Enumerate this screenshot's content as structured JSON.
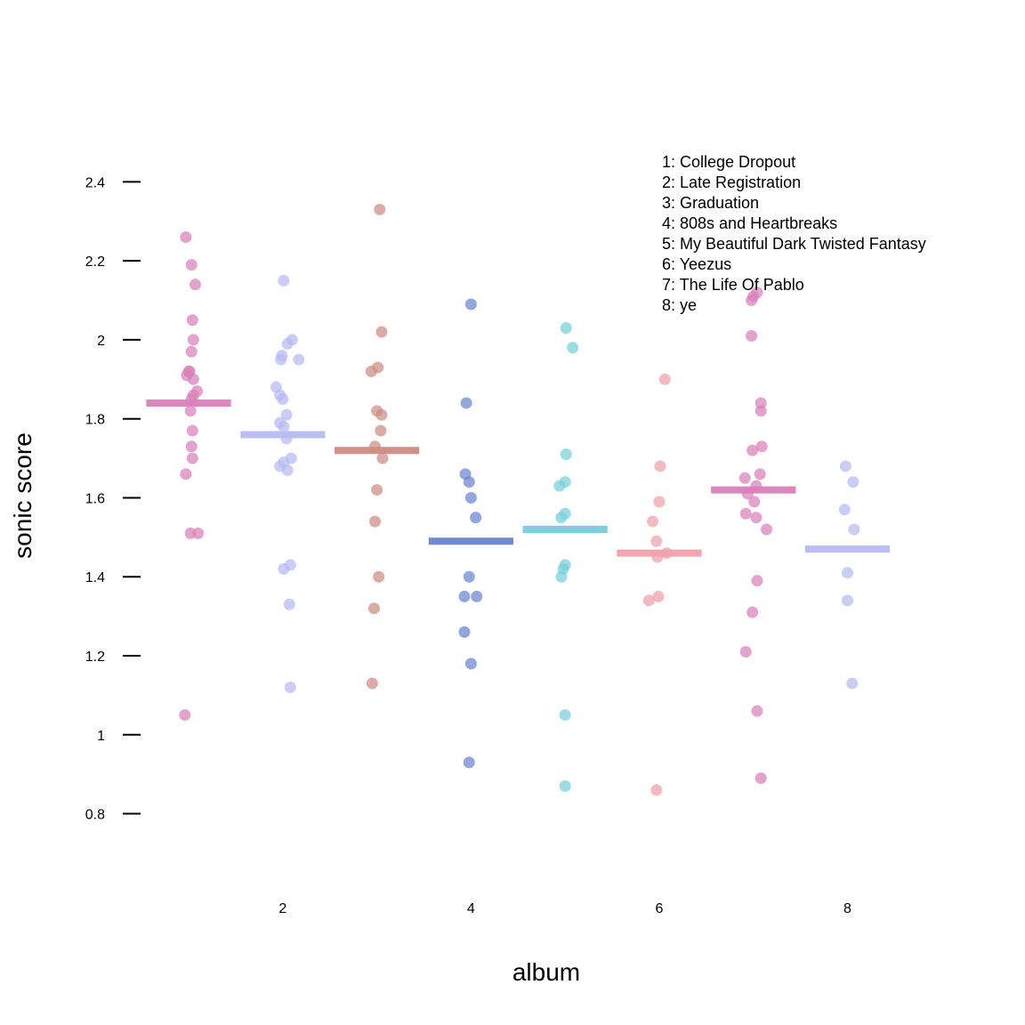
{
  "chart_data": {
    "type": "scatter",
    "xlabel": "album",
    "ylabel": "sonic score",
    "xlim": [
      0.3,
      9.3
    ],
    "ylim": [
      0.63,
      2.5
    ],
    "x_ticks": [
      2,
      4,
      6,
      8
    ],
    "y_ticks": [
      0.8,
      1,
      1.2,
      1.4,
      1.6,
      1.8,
      2,
      2.2,
      2.4
    ],
    "y_tick_labels": [
      "0.8",
      "1",
      "1.2",
      "1.4",
      "1.6",
      "1.8",
      "2",
      "2.2",
      "2.4"
    ],
    "grid": false,
    "legend_position": "top-right",
    "legend": [
      "1: College Dropout",
      "2: Late Registration",
      "3: Graduation",
      "4: 808s and Heartbreaks",
      "5: My Beautiful Dark Twisted Fantasy",
      "6: Yeezus",
      "7: The Life Of Pablo",
      "8: ye"
    ],
    "series": [
      {
        "album": 1,
        "color": "#d97fb9",
        "mean": 1.84,
        "points": [
          [
            0.97,
            2.26
          ],
          [
            1.03,
            2.19
          ],
          [
            1.07,
            2.14
          ],
          [
            1.04,
            2.05
          ],
          [
            1.05,
            2.0
          ],
          [
            1.03,
            1.97
          ],
          [
            1.0,
            1.92
          ],
          [
            1.01,
            1.92
          ],
          [
            0.98,
            1.91
          ],
          [
            1.05,
            1.9
          ],
          [
            1.09,
            1.87
          ],
          [
            1.05,
            1.86
          ],
          [
            1.03,
            1.85
          ],
          [
            1.02,
            1.82
          ],
          [
            1.04,
            1.77
          ],
          [
            1.03,
            1.73
          ],
          [
            1.04,
            1.7
          ],
          [
            0.97,
            1.66
          ],
          [
            1.02,
            1.51
          ],
          [
            1.1,
            1.51
          ],
          [
            0.96,
            1.05
          ]
        ]
      },
      {
        "album": 2,
        "color": "#b6baf2",
        "mean": 1.76,
        "points": [
          [
            2.01,
            2.15
          ],
          [
            2.1,
            2.0
          ],
          [
            2.05,
            1.99
          ],
          [
            1.99,
            1.96
          ],
          [
            1.98,
            1.95
          ],
          [
            2.17,
            1.95
          ],
          [
            1.93,
            1.88
          ],
          [
            1.97,
            1.86
          ],
          [
            2.0,
            1.85
          ],
          [
            2.04,
            1.81
          ],
          [
            1.97,
            1.79
          ],
          [
            2.01,
            1.78
          ],
          [
            2.04,
            1.75
          ],
          [
            2.09,
            1.7
          ],
          [
            2.01,
            1.69
          ],
          [
            1.97,
            1.68
          ],
          [
            2.05,
            1.67
          ],
          [
            2.08,
            1.43
          ],
          [
            2.01,
            1.42
          ],
          [
            2.07,
            1.33
          ],
          [
            2.08,
            1.12
          ]
        ]
      },
      {
        "album": 3,
        "color": "#cd8c82",
        "mean": 1.72,
        "points": [
          [
            3.03,
            2.33
          ],
          [
            3.05,
            2.02
          ],
          [
            3.01,
            1.93
          ],
          [
            2.94,
            1.92
          ],
          [
            3.0,
            1.82
          ],
          [
            3.05,
            1.81
          ],
          [
            3.04,
            1.77
          ],
          [
            2.98,
            1.73
          ],
          [
            3.06,
            1.7
          ],
          [
            3.0,
            1.62
          ],
          [
            2.98,
            1.54
          ],
          [
            3.02,
            1.4
          ],
          [
            2.97,
            1.32
          ],
          [
            2.95,
            1.13
          ]
        ]
      },
      {
        "album": 4,
        "color": "#6a83d0",
        "mean": 1.49,
        "points": [
          [
            4.0,
            2.09
          ],
          [
            3.95,
            1.84
          ],
          [
            3.94,
            1.66
          ],
          [
            3.98,
            1.64
          ],
          [
            4.0,
            1.6
          ],
          [
            4.05,
            1.55
          ],
          [
            3.98,
            1.4
          ],
          [
            3.93,
            1.35
          ],
          [
            4.06,
            1.35
          ],
          [
            3.93,
            1.26
          ],
          [
            4.0,
            1.18
          ],
          [
            3.98,
            0.93
          ]
        ]
      },
      {
        "album": 5,
        "color": "#74cedb",
        "mean": 1.52,
        "points": [
          [
            5.01,
            2.03
          ],
          [
            5.08,
            1.98
          ],
          [
            5.01,
            1.71
          ],
          [
            5.0,
            1.64
          ],
          [
            4.94,
            1.63
          ],
          [
            5.0,
            1.56
          ],
          [
            4.96,
            1.55
          ],
          [
            5.0,
            1.43
          ],
          [
            4.98,
            1.42
          ],
          [
            4.96,
            1.4
          ],
          [
            5.0,
            1.05
          ],
          [
            5.0,
            0.87
          ]
        ]
      },
      {
        "album": 6,
        "color": "#f0a0ab",
        "mean": 1.46,
        "points": [
          [
            6.06,
            1.9
          ],
          [
            6.01,
            1.68
          ],
          [
            6.0,
            1.59
          ],
          [
            5.93,
            1.54
          ],
          [
            5.97,
            1.49
          ],
          [
            6.08,
            1.46
          ],
          [
            5.98,
            1.45
          ],
          [
            5.99,
            1.35
          ],
          [
            5.89,
            1.34
          ],
          [
            5.97,
            0.86
          ]
        ]
      },
      {
        "album": 7,
        "color": "#d97fb9",
        "mean": 1.62,
        "points": [
          [
            7.04,
            2.12
          ],
          [
            7.0,
            2.11
          ],
          [
            6.98,
            2.1
          ],
          [
            6.98,
            2.01
          ],
          [
            7.08,
            1.84
          ],
          [
            7.08,
            1.82
          ],
          [
            7.09,
            1.73
          ],
          [
            6.99,
            1.72
          ],
          [
            7.07,
            1.66
          ],
          [
            6.91,
            1.65
          ],
          [
            7.03,
            1.63
          ],
          [
            6.94,
            1.61
          ],
          [
            7.01,
            1.59
          ],
          [
            6.92,
            1.56
          ],
          [
            7.03,
            1.55
          ],
          [
            7.14,
            1.52
          ],
          [
            7.04,
            1.39
          ],
          [
            6.99,
            1.31
          ],
          [
            6.92,
            1.21
          ],
          [
            7.04,
            1.06
          ],
          [
            7.08,
            0.89
          ]
        ]
      },
      {
        "album": 8,
        "color": "#b6baf2",
        "mean": 1.47,
        "points": [
          [
            7.98,
            1.68
          ],
          [
            8.06,
            1.64
          ],
          [
            7.97,
            1.57
          ],
          [
            8.07,
            1.52
          ],
          [
            8.0,
            1.41
          ],
          [
            8.0,
            1.34
          ],
          [
            8.05,
            1.13
          ]
        ]
      }
    ]
  }
}
